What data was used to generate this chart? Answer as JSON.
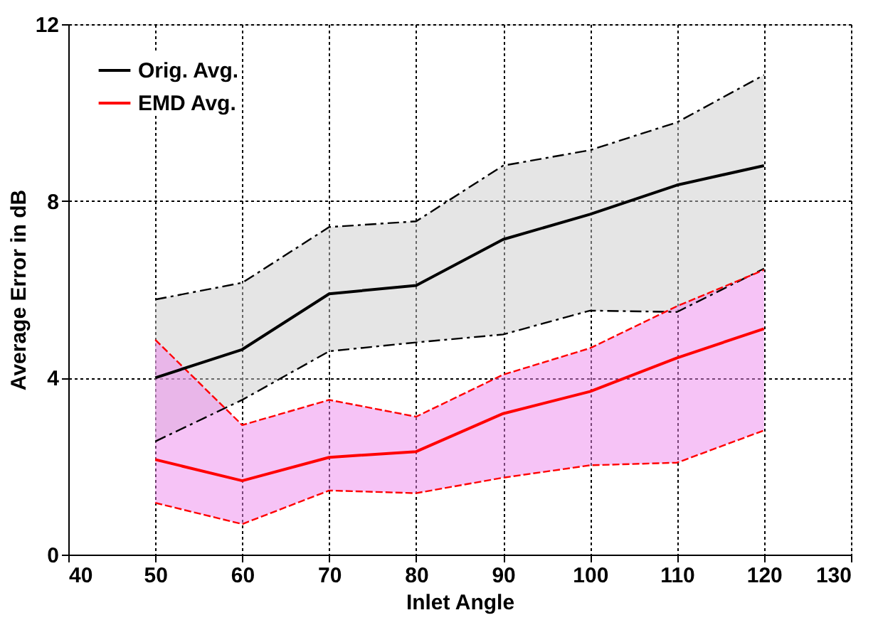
{
  "chart_data": {
    "type": "line",
    "xlabel": "Inlet Angle",
    "ylabel": "Average Error in dB",
    "x": [
      50,
      60,
      70,
      80,
      90,
      100,
      110,
      120
    ],
    "series": [
      {
        "name": "Orig. Avg.",
        "color": "#000000",
        "values": [
          4.0,
          4.64,
          5.9,
          6.09,
          7.13,
          7.7,
          8.36,
          8.8
        ],
        "lower": [
          2.56,
          3.5,
          4.6,
          4.8,
          4.98,
          5.52,
          5.49,
          6.47
        ],
        "upper": [
          5.77,
          6.15,
          7.41,
          7.54,
          8.8,
          9.15,
          9.78,
          10.85
        ]
      },
      {
        "name": "EMD Avg.",
        "color": "#ff0000",
        "values": [
          2.15,
          1.67,
          2.2,
          2.33,
          3.19,
          3.69,
          4.45,
          5.11
        ],
        "lower": [
          1.17,
          0.69,
          1.45,
          1.39,
          1.74,
          2.02,
          2.08,
          2.81
        ],
        "upper": [
          4.86,
          2.93,
          3.5,
          3.12,
          4.07,
          4.67,
          5.62,
          6.44
        ]
      },
      {
        "color": "#000000",
        "line_style": "dashed",
        "values": [
          2.56,
          3.5,
          4.6,
          4.8,
          4.98,
          5.52,
          5.49,
          6.47
        ]
      },
      {
        "color": "#000000",
        "line_style": "dashed",
        "values": [
          5.77,
          6.15,
          7.41,
          7.54,
          8.8,
          9.15,
          9.78,
          10.85
        ]
      },
      {
        "color": "#ff0000",
        "line_style": "dashed",
        "values": [
          1.17,
          0.69,
          1.45,
          1.39,
          1.74,
          2.02,
          2.08,
          2.81
        ]
      },
      {
        "color": "#ff0000",
        "line_style": "dashed",
        "values": [
          4.86,
          2.93,
          3.5,
          3.12,
          4.07,
          4.67,
          5.62,
          6.44
        ]
      }
    ],
    "xlim": [
      40,
      130
    ],
    "xticks": [
      40,
      50,
      60,
      70,
      80,
      90,
      100,
      110,
      120,
      130
    ],
    "ylim": [
      0,
      12
    ],
    "yticks": [
      0,
      4,
      8,
      12
    ],
    "grid": true,
    "legend": "top left",
    "line_style": "solid",
    "marker": "none"
  }
}
